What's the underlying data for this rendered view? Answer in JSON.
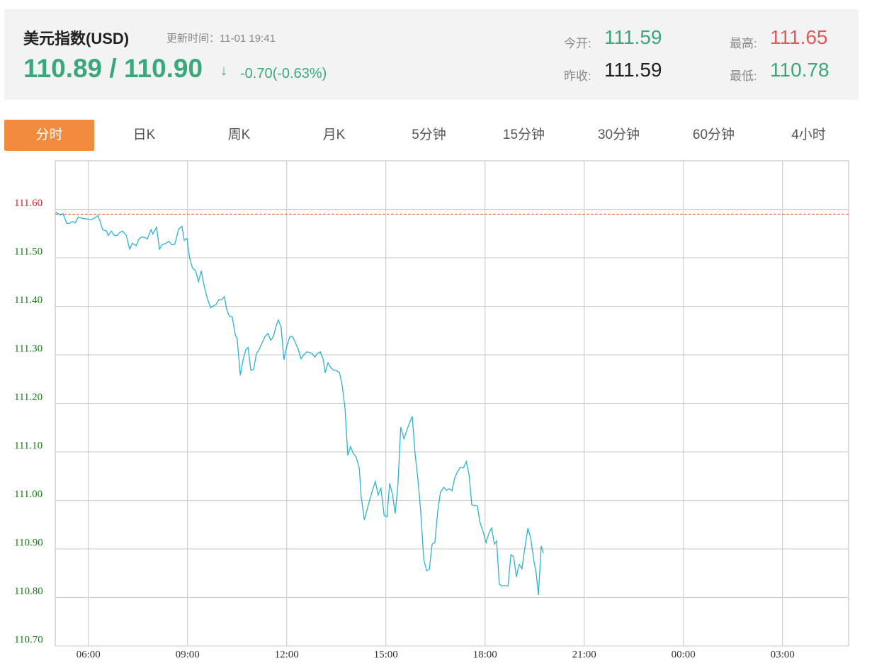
{
  "header": {
    "title": "美元指数(USD)",
    "update": "更新时间：11-01 19:41",
    "price": "110.89 / 110.90",
    "arrow": "↓",
    "change": "-0.70(-0.63%)",
    "stats": [
      {
        "label": "今开:",
        "value": "111.59",
        "color": "#3aa87a"
      },
      {
        "label": "最高:",
        "value": "111.65",
        "color": "#e15a5a"
      },
      {
        "label": "昨收:",
        "value": "111.59",
        "color": "#222222"
      },
      {
        "label": "最低:",
        "value": "110.78",
        "color": "#3aa87a"
      }
    ]
  },
  "tabs": {
    "items": [
      "分时",
      "日K",
      "周K",
      "月K",
      "5分钟",
      "15分钟",
      "30分钟",
      "60分钟",
      "4小时"
    ],
    "active": 0
  },
  "chart_data": {
    "type": "line",
    "color": "#2cb3cf",
    "grid": true,
    "xlim": [
      "05:00",
      "05:00"
    ],
    "xticks": [
      "06:00",
      "09:00",
      "12:00",
      "15:00",
      "18:00",
      "21:00",
      "00:00",
      "03:00"
    ],
    "ylim": [
      110.7,
      111.7
    ],
    "yticks": [
      {
        "value": 110.7,
        "label": "110.70"
      },
      {
        "value": 110.8,
        "label": "110.80"
      },
      {
        "value": 110.9,
        "label": "110.90"
      },
      {
        "value": 111,
        "label": "111.00"
      },
      {
        "value": 111.1,
        "label": "111.10"
      },
      {
        "value": 111.2,
        "label": "111.20"
      },
      {
        "value": 111.3,
        "label": "111.30"
      },
      {
        "value": 111.4,
        "label": "111.40"
      },
      {
        "value": 111.5,
        "label": "111.50"
      },
      {
        "value": 111.6,
        "label": "111.60"
      }
    ],
    "ref_line": {
      "value": 111.59,
      "color": "#e8562a"
    },
    "up_color": "#d9202a",
    "down_color": "#1a7a1a",
    "x": [
      "05:01",
      "05:10",
      "05:14",
      "05:21",
      "05:26",
      "05:31",
      "05:36",
      "05:42",
      "05:50",
      "05:58",
      "06:04",
      "06:12",
      "06:17",
      "06:21",
      "06:26",
      "06:33",
      "06:36",
      "06:42",
      "06:47",
      "06:52",
      "06:57",
      "07:02",
      "07:09",
      "07:15",
      "07:20",
      "07:27",
      "07:32",
      "07:37",
      "07:42",
      "07:47",
      "07:54",
      "07:57",
      "08:04",
      "08:09",
      "08:14",
      "08:21",
      "08:26",
      "08:32",
      "08:37",
      "08:44",
      "08:50",
      "08:54",
      "08:59",
      "09:04",
      "09:09",
      "09:15",
      "09:20",
      "09:25",
      "09:31",
      "09:36",
      "09:42",
      "09:47",
      "09:52",
      "09:57",
      "10:02",
      "10:07",
      "10:11",
      "10:16",
      "10:21",
      "10:27",
      "10:30",
      "10:36",
      "10:41",
      "10:46",
      "10:50",
      "10:55",
      "11:00",
      "11:05",
      "11:10",
      "11:15",
      "11:21",
      "11:26",
      "11:31",
      "11:36",
      "11:41",
      "11:45",
      "11:50",
      "11:55",
      "12:00",
      "12:06",
      "12:11",
      "12:16",
      "12:21",
      "12:26",
      "12:31",
      "12:36",
      "12:42",
      "12:47",
      "12:51",
      "12:56",
      "13:01",
      "13:06",
      "13:10",
      "13:15",
      "13:20",
      "13:25",
      "13:30",
      "13:36",
      "13:41",
      "13:46",
      "13:51",
      "13:56",
      "14:01",
      "14:06",
      "14:12",
      "14:15",
      "14:21",
      "14:26",
      "14:31",
      "14:36",
      "14:41",
      "14:46",
      "14:51",
      "14:57",
      "15:02",
      "15:07",
      "15:12",
      "15:17",
      "15:22",
      "15:27",
      "15:33",
      "15:38",
      "15:43",
      "15:48",
      "15:53",
      "15:58",
      "16:03",
      "16:09",
      "16:14",
      "16:19",
      "16:24",
      "16:29",
      "16:34",
      "16:39",
      "16:45",
      "16:50",
      "16:55",
      "17:00",
      "17:05",
      "17:10",
      "17:15",
      "17:21",
      "17:26",
      "17:31",
      "17:36",
      "17:41",
      "17:46",
      "17:51",
      "17:57",
      "18:02",
      "18:07",
      "18:12",
      "18:17",
      "18:21",
      "18:26",
      "18:31",
      "18:36",
      "18:42",
      "18:47",
      "18:52",
      "18:57",
      "19:02",
      "19:07",
      "19:12",
      "19:18",
      "19:23",
      "19:28",
      "19:33",
      "19:37",
      "19:42",
      "19:46"
    ],
    "values": [
      111.594,
      111.588,
      111.591,
      111.571,
      111.571,
      111.575,
      111.572,
      111.584,
      111.581,
      111.58,
      111.578,
      111.582,
      111.587,
      111.577,
      111.558,
      111.555,
      111.546,
      111.555,
      111.546,
      111.546,
      111.552,
      111.555,
      111.546,
      111.518,
      111.53,
      111.525,
      111.539,
      111.543,
      111.542,
      111.539,
      111.558,
      111.549,
      111.563,
      111.518,
      111.527,
      111.53,
      111.534,
      111.527,
      111.528,
      111.559,
      111.565,
      111.536,
      111.54,
      111.499,
      111.479,
      111.473,
      111.451,
      111.473,
      111.438,
      111.416,
      111.397,
      111.401,
      111.404,
      111.414,
      111.413,
      111.42,
      111.394,
      111.379,
      111.379,
      111.34,
      111.334,
      111.258,
      111.29,
      111.311,
      111.315,
      111.268,
      111.27,
      111.302,
      111.311,
      111.324,
      111.338,
      111.344,
      111.33,
      111.338,
      111.36,
      111.372,
      111.356,
      111.29,
      111.317,
      111.338,
      111.337,
      111.325,
      111.311,
      111.292,
      111.3,
      111.306,
      111.305,
      111.302,
      111.295,
      111.303,
      111.306,
      111.292,
      111.263,
      111.284,
      111.274,
      111.268,
      111.268,
      111.263,
      111.236,
      111.189,
      111.093,
      111.111,
      111.096,
      111.09,
      111.065,
      111.01,
      110.96,
      110.981,
      111.002,
      111.021,
      111.039,
      111.011,
      111.026,
      110.969,
      110.966,
      111.035,
      111.013,
      110.973,
      111.033,
      111.151,
      111.127,
      111.144,
      111.16,
      111.173,
      111.097,
      111.046,
      110.981,
      110.878,
      110.855,
      110.858,
      110.91,
      110.913,
      110.976,
      111.016,
      111.027,
      111.021,
      111.024,
      111.02,
      111.046,
      111.059,
      111.068,
      111.067,
      111.08,
      111.054,
      110.991,
      110.989,
      110.989,
      110.954,
      110.934,
      110.913,
      110.932,
      110.943,
      110.91,
      110.916,
      110.827,
      110.824,
      110.824,
      110.824,
      110.888,
      110.884,
      110.842,
      110.868,
      110.859,
      110.9,
      110.943,
      110.922,
      110.881,
      110.849,
      110.805,
      110.906,
      110.891
    ]
  }
}
